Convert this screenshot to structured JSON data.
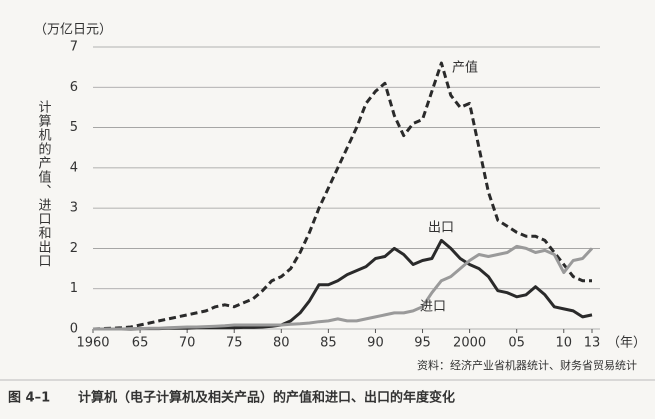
{
  "chart_data": {
    "type": "line",
    "unit_label": "（万亿日元）",
    "y_label": "计算机的产值、进口和出口",
    "x_label": "（年）",
    "source": "资料：经济产业省机器统计、财务省贸易统计",
    "figure_number": "图 4–1",
    "caption": "计算机（电子计算机及相关产品）的产值和进口、出口的年度变化",
    "x": [
      1960,
      1961,
      1962,
      1963,
      1964,
      1965,
      1966,
      1967,
      1968,
      1969,
      1970,
      1971,
      1972,
      1973,
      1974,
      1975,
      1976,
      1977,
      1978,
      1979,
      1980,
      1981,
      1982,
      1983,
      1984,
      1985,
      1986,
      1987,
      1988,
      1989,
      1990,
      1991,
      1992,
      1993,
      1994,
      1995,
      1996,
      1997,
      1998,
      1999,
      2000,
      2001,
      2002,
      2003,
      2004,
      2005,
      2006,
      2007,
      2008,
      2009,
      2010,
      2011,
      2012,
      2013
    ],
    "series": [
      {
        "name": "产值",
        "color": "#2a2a2a",
        "dashed": true,
        "values": [
          0,
          0.01,
          0.02,
          0.03,
          0.05,
          0.1,
          0.15,
          0.2,
          0.25,
          0.3,
          0.35,
          0.4,
          0.45,
          0.55,
          0.6,
          0.55,
          0.65,
          0.75,
          0.95,
          1.2,
          1.3,
          1.5,
          1.9,
          2.4,
          3.0,
          3.5,
          4.0,
          4.5,
          5.0,
          5.6,
          5.9,
          6.1,
          5.3,
          4.8,
          5.1,
          5.2,
          5.9,
          6.6,
          5.8,
          5.5,
          5.6,
          4.5,
          3.4,
          2.7,
          2.55,
          2.4,
          2.3,
          2.3,
          2.2,
          1.9,
          1.6,
          1.3,
          1.2,
          1.2
        ]
      },
      {
        "name": "出口",
        "color": "#2a2a2a",
        "dashed": false,
        "values": [
          0,
          0,
          0,
          0,
          0,
          0.01,
          0.01,
          0.01,
          0.02,
          0.02,
          0.02,
          0.03,
          0.03,
          0.03,
          0.03,
          0.03,
          0.04,
          0.04,
          0.05,
          0.07,
          0.1,
          0.2,
          0.4,
          0.7,
          1.1,
          1.1,
          1.2,
          1.35,
          1.45,
          1.55,
          1.75,
          1.8,
          2.0,
          1.85,
          1.6,
          1.7,
          1.75,
          2.2,
          2.0,
          1.75,
          1.6,
          1.5,
          1.3,
          0.95,
          0.9,
          0.8,
          0.85,
          1.05,
          0.85,
          0.55,
          0.5,
          0.45,
          0.3,
          0.35
        ]
      },
      {
        "name": "进口",
        "color": "#9a9a9a",
        "dashed": false,
        "values": [
          0,
          0,
          0,
          0,
          0.01,
          0.01,
          0.02,
          0.02,
          0.03,
          0.04,
          0.05,
          0.05,
          0.06,
          0.07,
          0.08,
          0.1,
          0.1,
          0.1,
          0.1,
          0.1,
          0.1,
          0.12,
          0.13,
          0.15,
          0.18,
          0.2,
          0.25,
          0.2,
          0.2,
          0.25,
          0.3,
          0.35,
          0.4,
          0.4,
          0.45,
          0.55,
          0.9,
          1.2,
          1.3,
          1.5,
          1.7,
          1.85,
          1.8,
          1.85,
          1.9,
          2.05,
          2.0,
          1.9,
          1.95,
          1.85,
          1.4,
          1.7,
          1.75,
          2.0
        ]
      }
    ],
    "xlim": [
      1960,
      2013
    ],
    "ylim": [
      0,
      7
    ],
    "xticks": [
      1960,
      {
        "value": 1965,
        "label": "65"
      },
      {
        "value": 1970,
        "label": "70"
      },
      {
        "value": 1975,
        "label": "75"
      },
      {
        "value": 1980,
        "label": "80"
      },
      {
        "value": 1985,
        "label": "85"
      },
      {
        "value": 1990,
        "label": "90"
      },
      {
        "value": 1995,
        "label": "95"
      },
      2000,
      {
        "value": 2005,
        "label": "05"
      },
      {
        "value": 2010,
        "label": "10"
      },
      {
        "value": 2013,
        "label": "13"
      }
    ],
    "yticks": [
      0,
      1,
      2,
      3,
      4,
      5,
      6,
      7
    ],
    "grid": true
  }
}
